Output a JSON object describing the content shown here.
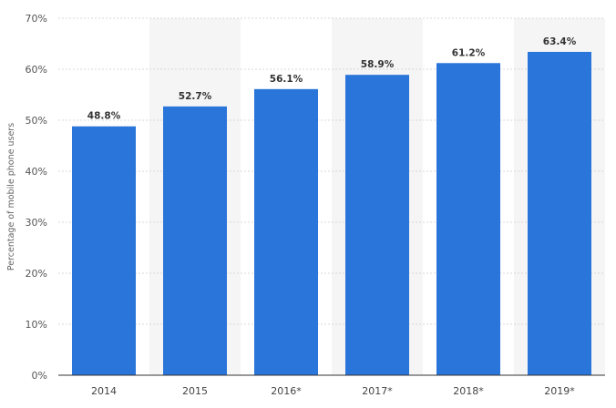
{
  "chart_data": {
    "type": "bar",
    "categories": [
      "2014",
      "2015",
      "2016*",
      "2017*",
      "2018*",
      "2019*"
    ],
    "values": [
      48.8,
      52.7,
      56.1,
      58.9,
      61.2,
      63.4
    ],
    "data_labels": [
      "48.8%",
      "52.7%",
      "56.1%",
      "58.9%",
      "61.2%",
      "63.4%"
    ],
    "title": "",
    "xlabel": "",
    "ylabel": "Percentage of mobile phone users",
    "ylim": [
      0,
      70
    ],
    "yticks": [
      0,
      10,
      20,
      30,
      40,
      50,
      60,
      70
    ],
    "ytick_labels": [
      "0%",
      "10%",
      "20%",
      "30%",
      "40%",
      "50%",
      "60%",
      "70%"
    ],
    "grid": true,
    "legend": "none",
    "bar_color": "#2a75d9",
    "band_color": "#f5f5f5",
    "grid_color": "#d8d8d8"
  }
}
